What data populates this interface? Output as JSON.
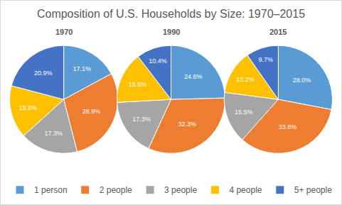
{
  "chart_data": {
    "type": "pie",
    "title": "Composition of U.S. Households by Size: 1970–2015",
    "categories": [
      "1 person",
      "2 people",
      "3 people",
      "4 people",
      "5+ people"
    ],
    "colors": [
      "#5b9bd5",
      "#ed7d31",
      "#a5a5a5",
      "#ffc000",
      "#4472c4"
    ],
    "series": [
      {
        "name": "1970",
        "values": [
          17.1,
          28.9,
          17.3,
          15.8,
          20.9
        ],
        "value_labels": [
          "17.1%",
          "28.9%",
          "17.3%",
          "15.8%",
          "20.9%"
        ]
      },
      {
        "name": "1990",
        "values": [
          24.6,
          32.3,
          17.3,
          15.5,
          10.4
        ],
        "value_labels": [
          "24.6%",
          "32.3%",
          "17.3%",
          "15.5%",
          "10.4%"
        ]
      },
      {
        "name": "2015",
        "values": [
          28.0,
          33.6,
          15.5,
          13.2,
          9.7
        ],
        "value_labels": [
          "28.0%",
          "33.6%",
          "15.5%",
          "13.2%",
          "9.7%"
        ]
      }
    ],
    "data_labels": true,
    "legend": "bottom"
  }
}
